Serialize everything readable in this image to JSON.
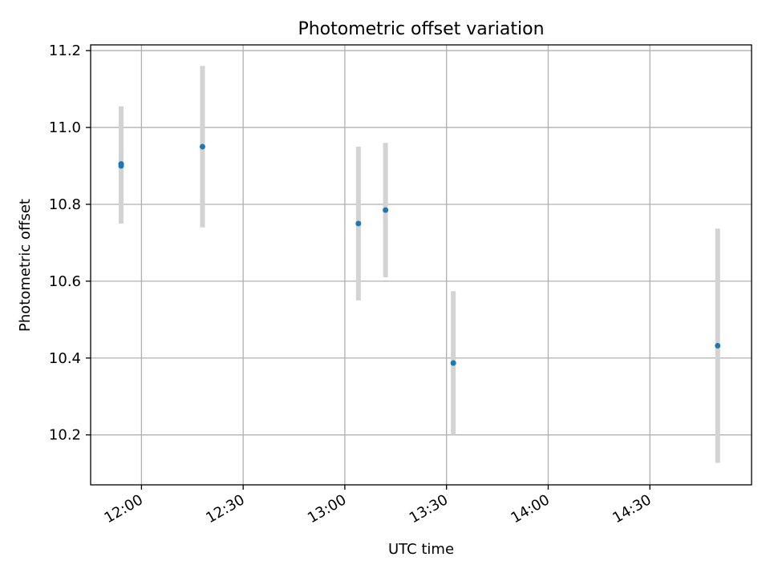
{
  "chart_data": {
    "type": "scatter",
    "title": "Photometric offset variation",
    "xlabel": "UTC time",
    "ylabel": "Photometric offset",
    "x_axis": "time",
    "xlim": [
      "11:45",
      "15:00"
    ],
    "ylim": [
      10.07,
      11.215
    ],
    "x_ticks": [
      "12:00",
      "12:30",
      "13:00",
      "13:30",
      "14:00",
      "14:30"
    ],
    "y_ticks": [
      "10.2",
      "10.4",
      "10.6",
      "10.8",
      "11.0",
      "11.2"
    ],
    "grid": true,
    "point_color": "#1f77b4",
    "errorbar_color": "#d3d3d3",
    "points": [
      {
        "x": "11:54",
        "y": 10.9,
        "yerr": 0.15
      },
      {
        "x": "11:54",
        "y": 10.905,
        "yerr": 0.15
      },
      {
        "x": "12:18",
        "y": 10.95,
        "yerr": 0.21
      },
      {
        "x": "13:04",
        "y": 10.75,
        "yerr": 0.2
      },
      {
        "x": "13:12",
        "y": 10.785,
        "yerr": 0.175
      },
      {
        "x": "13:32",
        "y": 10.387,
        "yerr": 0.187
      },
      {
        "x": "14:50",
        "y": 10.432,
        "yerr": 0.305
      }
    ]
  }
}
